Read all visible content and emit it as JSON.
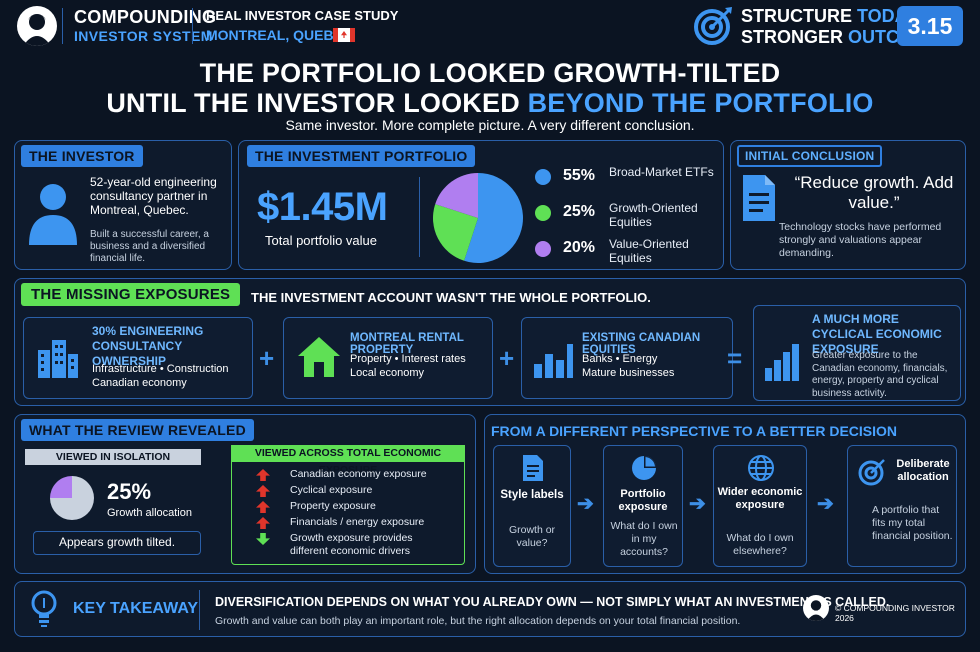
{
  "header": {
    "brand_line1": "COMPOUNDING",
    "brand_line2": "INVESTOR SYSTEM",
    "case_line1": "REAL INVESTOR CASE STUDY",
    "case_line2": "MONTREAL, QUEBEC",
    "tagline_a1": "STRUCTURE",
    "tagline_a2": "TODAY.",
    "tagline_b1": "STRONGER",
    "tagline_b2": "OUTCOMES.",
    "badge": "3.15"
  },
  "title": {
    "line1": "THE PORTFOLIO LOOKED GROWTH-TILTED",
    "line2a": "UNTIL THE INVESTOR LOOKED",
    "line2b": "BEYOND THE PORTFOLIO",
    "subtitle": "Same investor. More complete picture. A very different conclusion."
  },
  "investor": {
    "tag": "THE INVESTOR",
    "desc": "52-year-old engineering consultancy partner in Montreal, Quebec.",
    "note": "Built a successful career, a business and a diversified financial life."
  },
  "portfolio": {
    "tag": "THE INVESTMENT PORTFOLIO",
    "value": "$1.45M",
    "value_label": "Total portfolio value",
    "allocations": [
      {
        "pct": "55%",
        "label": "Broad-Market ETFs",
        "value": 55,
        "color": "#3d95f0"
      },
      {
        "pct": "25%",
        "label": "Growth-Oriented Equities",
        "value": 25,
        "color": "#5fe055"
      },
      {
        "pct": "20%",
        "label": "Value-Oriented Equities",
        "value": 20,
        "color": "#b07ef0"
      }
    ]
  },
  "conclusion": {
    "tag": "INITIAL CONCLUSION",
    "quote": "“Reduce growth. Add value.”",
    "note": "Technology stocks have performed strongly and valuations appear demanding."
  },
  "missing": {
    "tag": "THE MISSING EXPOSURES",
    "headline": "THE INVESTMENT ACCOUNT WASN'T THE WHOLE PORTFOLIO.",
    "items": [
      {
        "title": "30% ENGINEERING CONSULTANCY OWNERSHIP",
        "desc": "Infrastructure • Construction Canadian economy"
      },
      {
        "title": "MONTREAL RENTAL PROPERTY",
        "desc": "Property • Interest rates Local economy"
      },
      {
        "title": "EXISTING CANADIAN EQUITIES",
        "desc": "Banks • Energy Mature businesses"
      }
    ],
    "result_title": "A MUCH MORE CYCLICAL ECONOMIC EXPOSURE",
    "result_desc": "Greater exposure to the Canadian economy, financials, energy, property and cyclical business activity.",
    "plus": "+",
    "equals": "="
  },
  "review": {
    "tag": "WHAT THE REVIEW REVEALED",
    "isolation_label": "VIEWED IN ISOLATION",
    "growth_pct": "25%",
    "growth_value": 25,
    "growth_label": "Growth allocation",
    "verdict": "Appears growth tilted.",
    "total_label": "VIEWED ACROSS TOTAL ECONOMIC EXPOSURE",
    "exposures": [
      {
        "text": "Canadian economy exposure",
        "dir": "up"
      },
      {
        "text": "Cyclical exposure",
        "dir": "up"
      },
      {
        "text": "Property exposure",
        "dir": "up"
      },
      {
        "text": "Financials / energy exposure",
        "dir": "up"
      },
      {
        "text": "Growth exposure provides different economic drivers",
        "dir": "down"
      }
    ]
  },
  "perspective": {
    "title": "FROM A DIFFERENT PERSPECTIVE TO A BETTER DECISION",
    "steps": [
      {
        "title": "Style labels",
        "q": "Growth or value?"
      },
      {
        "title": "Portfolio exposure",
        "q": "What do I own in my accounts?"
      },
      {
        "title": "Wider economic exposure",
        "q": "What do I own elsewhere?"
      },
      {
        "title": "Deliberate allocation",
        "q": "A portfolio that fits my total financial position."
      }
    ]
  },
  "takeaway": {
    "label": "KEY TAKEAWAY",
    "headline": "DIVERSIFICATION DEPENDS ON WHAT YOU ALREADY OWN — NOT SIMPLY WHAT AN INVESTMENT IS CALLED.",
    "sub": "Growth and value can both play an important role, but the right allocation depends on your total financial position.",
    "copyright": "© COMPOUNDING INVESTOR 2026"
  },
  "colors": {
    "accent": "#2f7fe0",
    "green": "#5fe055",
    "purple": "#b07ef0",
    "red": "#e0352b",
    "bg": "#0b1422"
  }
}
